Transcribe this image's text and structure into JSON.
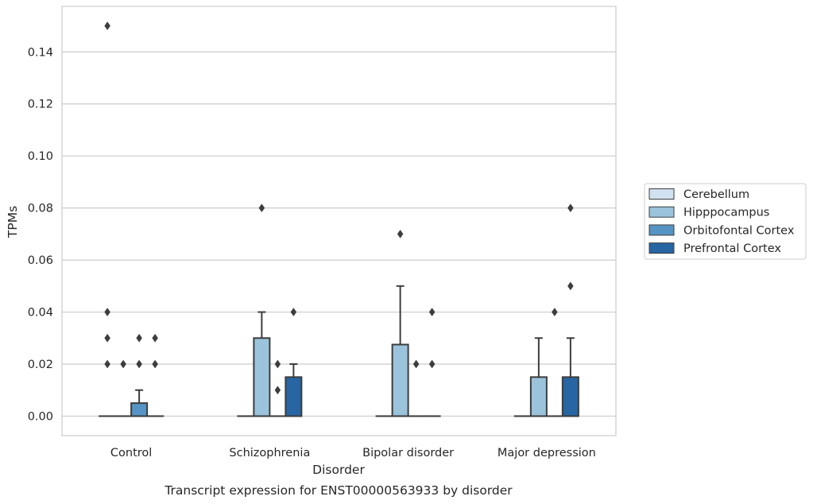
{
  "chart_data": {
    "type": "boxplot",
    "title": "",
    "caption": "Transcript expression for ENST00000563933 by disorder",
    "xlabel": "Disorder",
    "ylabel": "TPMs",
    "ylim": [
      -0.0075,
      0.1575
    ],
    "yticks": [
      0.0,
      0.02,
      0.04,
      0.06,
      0.08,
      0.1,
      0.12,
      0.14
    ],
    "ytick_labels": [
      "0.00",
      "0.02",
      "0.04",
      "0.06",
      "0.08",
      "0.10",
      "0.12",
      "0.14"
    ],
    "grid": "horizontal",
    "legend_position": "right",
    "categories": [
      "Control",
      "Schizophrenia",
      "Bipolar disorder",
      "Major depression"
    ],
    "series": [
      {
        "name": "Cerebellum",
        "color": "#d1e1f0",
        "boxes": [
          {
            "q1": 0,
            "median": 0,
            "q3": 0,
            "whisker_low": 0,
            "whisker_high": 0,
            "outliers": [
              0.15,
              0.04,
              0.03,
              0.02
            ]
          },
          {
            "q1": 0,
            "median": 0,
            "q3": 0,
            "whisker_low": 0,
            "whisker_high": 0,
            "outliers": []
          },
          {
            "q1": 0,
            "median": 0,
            "q3": 0,
            "whisker_low": 0,
            "whisker_high": 0,
            "outliers": []
          },
          {
            "q1": 0,
            "median": 0,
            "q3": 0,
            "whisker_low": 0,
            "whisker_high": 0,
            "outliers": []
          }
        ]
      },
      {
        "name": "Hipppocampus",
        "color": "#9bc3dc",
        "boxes": [
          {
            "q1": 0,
            "median": 0,
            "q3": 0,
            "whisker_low": 0,
            "whisker_high": 0,
            "outliers": [
              0.02
            ]
          },
          {
            "q1": 0,
            "median": 0,
            "q3": 0.03,
            "whisker_low": 0,
            "whisker_high": 0.04,
            "outliers": [
              0.08
            ]
          },
          {
            "q1": 0,
            "median": 0,
            "q3": 0.0275,
            "whisker_low": 0,
            "whisker_high": 0.05,
            "outliers": [
              0.07
            ]
          },
          {
            "q1": 0,
            "median": 0,
            "q3": 0.015,
            "whisker_low": 0,
            "whisker_high": 0.03,
            "outliers": []
          }
        ]
      },
      {
        "name": "Orbitofontal Cortex",
        "color": "#5594c4",
        "boxes": [
          {
            "q1": 0,
            "median": 0,
            "q3": 0.005,
            "whisker_low": 0,
            "whisker_high": 0.01,
            "outliers": [
              0.03,
              0.02
            ]
          },
          {
            "q1": 0,
            "median": 0,
            "q3": 0,
            "whisker_low": 0,
            "whisker_high": 0,
            "outliers": [
              0.02,
              0.01
            ]
          },
          {
            "q1": 0,
            "median": 0,
            "q3": 0,
            "whisker_low": 0,
            "whisker_high": 0,
            "outliers": [
              0.02
            ]
          },
          {
            "q1": 0,
            "median": 0,
            "q3": 0,
            "whisker_low": 0,
            "whisker_high": 0,
            "outliers": [
              0.04
            ]
          }
        ]
      },
      {
        "name": "Prefrontal Cortex",
        "color": "#2765a3",
        "boxes": [
          {
            "q1": 0,
            "median": 0,
            "q3": 0,
            "whisker_low": 0,
            "whisker_high": 0,
            "outliers": [
              0.03,
              0.02
            ]
          },
          {
            "q1": 0,
            "median": 0,
            "q3": 0.015,
            "whisker_low": 0,
            "whisker_high": 0.02,
            "outliers": [
              0.04
            ]
          },
          {
            "q1": 0,
            "median": 0,
            "q3": 0,
            "whisker_low": 0,
            "whisker_high": 0,
            "outliers": [
              0.04,
              0.02
            ]
          },
          {
            "q1": 0,
            "median": 0,
            "q3": 0.015,
            "whisker_low": 0,
            "whisker_high": 0.03,
            "outliers": [
              0.08,
              0.05
            ]
          }
        ]
      }
    ]
  }
}
